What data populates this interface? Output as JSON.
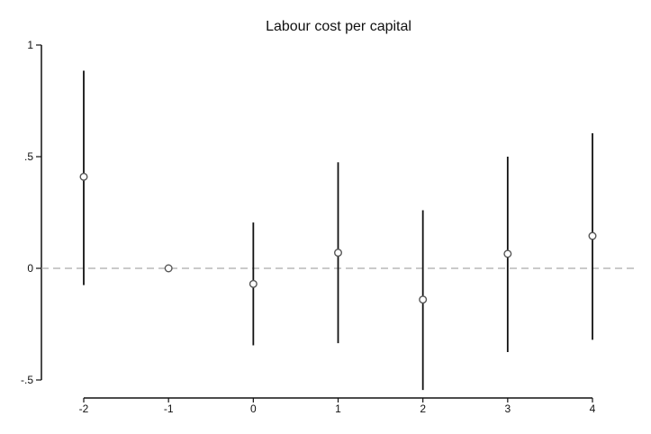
{
  "chart_data": {
    "type": "scatter",
    "title": "Labour cost per capital",
    "xlabel": "",
    "ylabel": "",
    "x": [
      -2,
      -1,
      0,
      1,
      2,
      3,
      4
    ],
    "estimate": [
      0.41,
      0.0,
      -0.07,
      0.07,
      -0.14,
      0.065,
      0.145
    ],
    "ci_low": [
      -0.075,
      0.0,
      -0.345,
      -0.335,
      -0.545,
      -0.375,
      -0.32
    ],
    "ci_high": [
      0.885,
      0.0,
      0.205,
      0.475,
      0.26,
      0.5,
      0.605
    ],
    "x_ticks": [
      "-2",
      "-1",
      "0",
      "1",
      "2",
      "3",
      "4"
    ],
    "y_ticks": [
      "1",
      ".5",
      "0",
      "-.5"
    ],
    "y_tick_values": [
      1,
      0.5,
      0,
      -0.5
    ],
    "xlim": [
      -2,
      4
    ],
    "ylim": [
      -0.5,
      1
    ],
    "reference_line_y": 0,
    "grid": false,
    "colors": {
      "marker": "#555555",
      "ci_line": "#111111",
      "reference_line": "#aaaaaa",
      "axis": "#111111"
    }
  }
}
